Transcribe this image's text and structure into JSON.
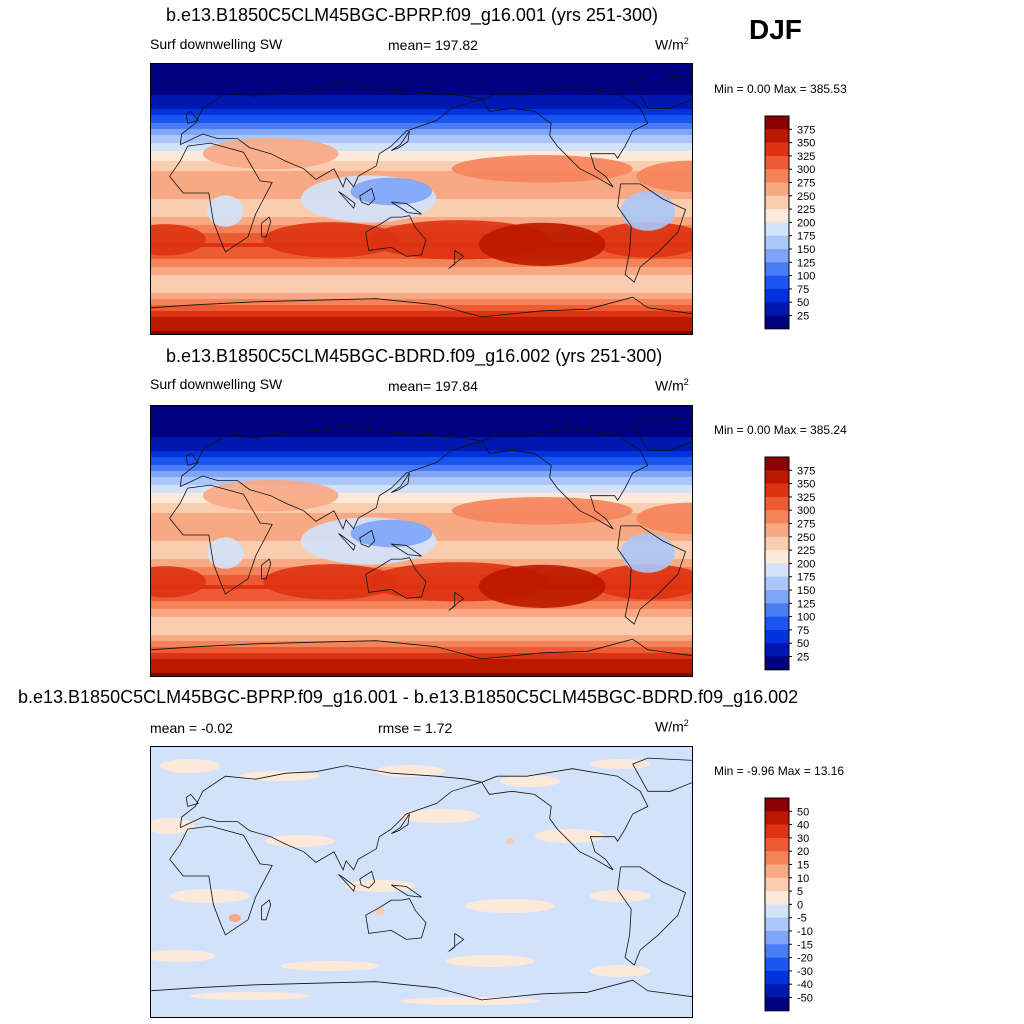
{
  "season": "DJF",
  "palette_main": [
    "#000080",
    "#0018b0",
    "#0033dd",
    "#1a55f0",
    "#4a7cf5",
    "#7ea5f8",
    "#aac6fa",
    "#d2e2fb",
    "#fde9da",
    "#fbcdb0",
    "#f8a983",
    "#f5835a",
    "#ee5a33",
    "#dd3312",
    "#bb1800",
    "#8b0000"
  ],
  "palette_diff": [
    "#000080",
    "#0018b0",
    "#0033dd",
    "#1a55f0",
    "#4a7cf5",
    "#7ea5f8",
    "#aac6fa",
    "#d2e2fb",
    "#fde9da",
    "#fbcdb0",
    "#f8a983",
    "#f5835a",
    "#ee5a33",
    "#dd3312",
    "#bb1800",
    "#8b0000"
  ],
  "panels": [
    {
      "title": "b.e13.B1850C5CLM45BGC-BPRP.f09_g16.001 (yrs 251-300)",
      "left_label": "Surf downwelling SW",
      "center_label": "mean= 197.82",
      "unit_base": "W/m",
      "unit_exp": "2",
      "minmax": "Min =   0.00 Max = 385.53"
    },
    {
      "title": "b.e13.B1850C5CLM45BGC-BDRD.f09_g16.002 (yrs 251-300)",
      "left_label": "Surf downwelling SW",
      "center_label": "mean= 197.84",
      "unit_base": "W/m",
      "unit_exp": "2",
      "minmax": "Min =   0.00 Max = 385.24"
    },
    {
      "title": "b.e13.B1850C5CLM45BGC-BPRP.f09_g16.001 - b.e13.B1850C5CLM45BGC-BDRD.f09_g16.002",
      "left_label": "mean =  -0.02",
      "center_label": "rmse =   1.72",
      "unit_base": "W/m",
      "unit_exp": "2",
      "minmax": "Min =  -9.96 Max =  13.16"
    }
  ],
  "chart_data": [
    {
      "type": "heatmap",
      "title": "b.e13.B1850C5CLM45BGC-BPRP.f09_g16.001 (yrs 251-300)",
      "variable": "Surf downwelling SW",
      "mean": 197.82,
      "min": 0.0,
      "max": 385.53,
      "units": "W/m2",
      "colorbar_levels": [
        "375",
        "350",
        "325",
        "300",
        "275",
        "250",
        "225",
        "200",
        "175",
        "150",
        "125",
        "100",
        "75",
        "50",
        "25"
      ],
      "zonal_profile": {
        "lat": [
          90,
          80,
          70,
          60,
          50,
          40,
          30,
          20,
          10,
          0,
          -10,
          -20,
          -30,
          -40,
          -50,
          -60,
          -70,
          -80,
          -90
        ],
        "value": [
          0,
          5,
          20,
          50,
          100,
          165,
          205,
          245,
          275,
          250,
          240,
          290,
          330,
          300,
          250,
          230,
          300,
          360,
          380
        ]
      }
    },
    {
      "type": "heatmap",
      "title": "b.e13.B1850C5CLM45BGC-BDRD.f09_g16.002 (yrs 251-300)",
      "variable": "Surf downwelling SW",
      "mean": 197.84,
      "min": 0.0,
      "max": 385.24,
      "units": "W/m2",
      "colorbar_levels": [
        "375",
        "350",
        "325",
        "300",
        "275",
        "250",
        "225",
        "200",
        "175",
        "150",
        "125",
        "100",
        "75",
        "50",
        "25"
      ],
      "zonal_profile": {
        "lat": [
          90,
          80,
          70,
          60,
          50,
          40,
          30,
          20,
          10,
          0,
          -10,
          -20,
          -30,
          -40,
          -50,
          -60,
          -70,
          -80,
          -90
        ],
        "value": [
          0,
          5,
          20,
          50,
          100,
          165,
          205,
          245,
          275,
          250,
          240,
          290,
          330,
          300,
          250,
          230,
          300,
          360,
          380
        ]
      }
    },
    {
      "type": "heatmap",
      "title": "b.e13.B1850C5CLM45BGC-BPRP.f09_g16.001 - b.e13.B1850C5CLM45BGC-BDRD.f09_g16.002",
      "mean": -0.02,
      "rmse": 1.72,
      "min": -9.96,
      "max": 13.16,
      "units": "W/m2",
      "colorbar_levels": [
        "50",
        "40",
        "30",
        "20",
        "15",
        "10",
        "5",
        "0",
        "-5",
        "-10",
        "-15",
        "-20",
        "-30",
        "-40",
        "-50"
      ]
    }
  ]
}
